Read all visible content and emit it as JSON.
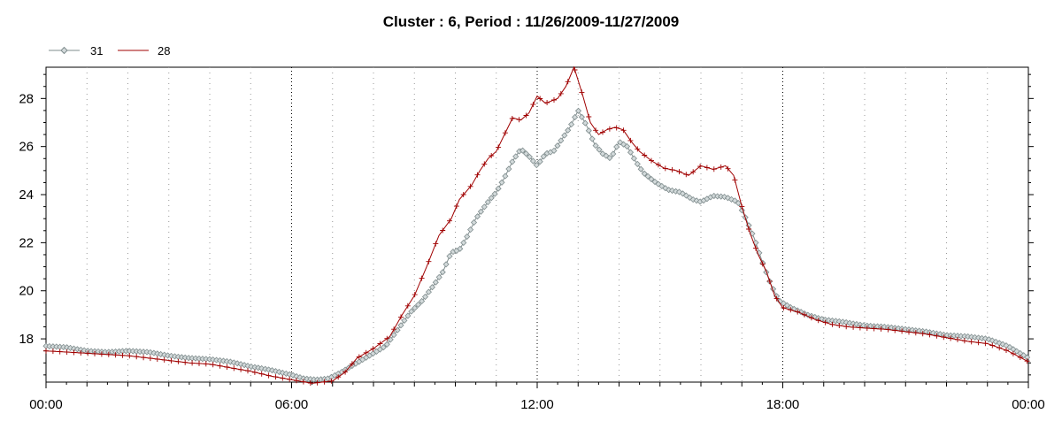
{
  "chart_data": {
    "type": "line",
    "title": "Cluster : 6, Period : 11/26/2009-11/27/2009",
    "xlabel": "",
    "ylabel": "",
    "xlim": [
      0,
      24
    ],
    "ylim": [
      16.2,
      29.3
    ],
    "x_ticks": [
      {
        "value": 0,
        "label": "00:00"
      },
      {
        "value": 6,
        "label": "06:00"
      },
      {
        "value": 12,
        "label": "12:00"
      },
      {
        "value": 18,
        "label": "18:00"
      },
      {
        "value": 24,
        "label": "00:00"
      }
    ],
    "y_ticks": [
      {
        "value": 18,
        "label": "18"
      },
      {
        "value": 20,
        "label": "20"
      },
      {
        "value": 22,
        "label": "22"
      },
      {
        "value": 24,
        "label": "24"
      },
      {
        "value": 26,
        "label": "26"
      },
      {
        "value": 28,
        "label": "28"
      }
    ],
    "grid": "vertical dotted",
    "legend_position": "top-left",
    "series": [
      {
        "name": "31",
        "color": "#7f8c8d",
        "marker": "diamond",
        "points": [
          [
            0,
            17.7
          ],
          [
            0.5,
            17.65
          ],
          [
            1,
            17.5
          ],
          [
            1.5,
            17.45
          ],
          [
            2,
            17.5
          ],
          [
            2.5,
            17.45
          ],
          [
            3,
            17.3
          ],
          [
            3.5,
            17.2
          ],
          [
            4,
            17.15
          ],
          [
            4.5,
            17.05
          ],
          [
            5,
            16.85
          ],
          [
            5.5,
            16.7
          ],
          [
            6,
            16.5
          ],
          [
            6.3,
            16.35
          ],
          [
            6.6,
            16.3
          ],
          [
            6.9,
            16.35
          ],
          [
            7.2,
            16.6
          ],
          [
            7.6,
            17.0
          ],
          [
            8.0,
            17.4
          ],
          [
            8.3,
            17.7
          ],
          [
            8.6,
            18.4
          ],
          [
            8.9,
            19.1
          ],
          [
            9.2,
            19.6
          ],
          [
            9.5,
            20.3
          ],
          [
            9.7,
            20.8
          ],
          [
            9.9,
            21.6
          ],
          [
            10.1,
            21.7
          ],
          [
            10.3,
            22.3
          ],
          [
            10.5,
            23.0
          ],
          [
            10.8,
            23.7
          ],
          [
            11.0,
            24.1
          ],
          [
            11.2,
            24.7
          ],
          [
            11.4,
            25.4
          ],
          [
            11.6,
            25.9
          ],
          [
            11.8,
            25.6
          ],
          [
            12.0,
            25.2
          ],
          [
            12.2,
            25.7
          ],
          [
            12.4,
            25.8
          ],
          [
            12.6,
            26.3
          ],
          [
            12.8,
            26.8
          ],
          [
            13.0,
            27.5
          ],
          [
            13.2,
            26.9
          ],
          [
            13.4,
            26.1
          ],
          [
            13.6,
            25.7
          ],
          [
            13.8,
            25.5
          ],
          [
            14.0,
            26.2
          ],
          [
            14.2,
            26.0
          ],
          [
            14.4,
            25.4
          ],
          [
            14.6,
            24.9
          ],
          [
            14.9,
            24.5
          ],
          [
            15.2,
            24.2
          ],
          [
            15.5,
            24.1
          ],
          [
            15.8,
            23.8
          ],
          [
            16.0,
            23.7
          ],
          [
            16.3,
            23.95
          ],
          [
            16.6,
            23.9
          ],
          [
            16.9,
            23.7
          ],
          [
            17.1,
            23.0
          ],
          [
            17.3,
            22.2
          ],
          [
            17.5,
            21.2
          ],
          [
            17.7,
            20.3
          ],
          [
            17.9,
            19.6
          ],
          [
            18.2,
            19.3
          ],
          [
            18.6,
            19.0
          ],
          [
            19.0,
            18.8
          ],
          [
            19.5,
            18.7
          ],
          [
            20,
            18.55
          ],
          [
            20.5,
            18.5
          ],
          [
            21,
            18.4
          ],
          [
            21.5,
            18.3
          ],
          [
            22,
            18.15
          ],
          [
            22.5,
            18.1
          ],
          [
            23,
            18.0
          ],
          [
            23.5,
            17.7
          ],
          [
            24,
            17.2
          ]
        ]
      },
      {
        "name": "28",
        "color": "#a00000",
        "marker": "plus",
        "points": [
          [
            0,
            17.5
          ],
          [
            0.5,
            17.45
          ],
          [
            1,
            17.4
          ],
          [
            1.5,
            17.35
          ],
          [
            2,
            17.3
          ],
          [
            2.5,
            17.2
          ],
          [
            3,
            17.1
          ],
          [
            3.5,
            17.0
          ],
          [
            4,
            16.95
          ],
          [
            4.5,
            16.8
          ],
          [
            5,
            16.65
          ],
          [
            5.5,
            16.45
          ],
          [
            6,
            16.3
          ],
          [
            6.5,
            16.15
          ],
          [
            7,
            16.25
          ],
          [
            7.3,
            16.6
          ],
          [
            7.6,
            17.2
          ],
          [
            8.0,
            17.6
          ],
          [
            8.4,
            18.1
          ],
          [
            8.7,
            19.0
          ],
          [
            9.0,
            19.8
          ],
          [
            9.3,
            21.0
          ],
          [
            9.6,
            22.3
          ],
          [
            9.9,
            23.0
          ],
          [
            10.1,
            23.8
          ],
          [
            10.4,
            24.4
          ],
          [
            10.6,
            25.0
          ],
          [
            10.8,
            25.5
          ],
          [
            11.0,
            25.8
          ],
          [
            11.2,
            26.5
          ],
          [
            11.4,
            27.2
          ],
          [
            11.6,
            27.1
          ],
          [
            11.8,
            27.4
          ],
          [
            12.0,
            28.1
          ],
          [
            12.2,
            27.8
          ],
          [
            12.5,
            28.0
          ],
          [
            12.7,
            28.5
          ],
          [
            12.9,
            29.3
          ],
          [
            13.1,
            28.2
          ],
          [
            13.3,
            27.0
          ],
          [
            13.5,
            26.5
          ],
          [
            13.7,
            26.7
          ],
          [
            13.9,
            26.8
          ],
          [
            14.1,
            26.7
          ],
          [
            14.3,
            26.2
          ],
          [
            14.5,
            25.8
          ],
          [
            14.8,
            25.4
          ],
          [
            15.1,
            25.1
          ],
          [
            15.4,
            25.0
          ],
          [
            15.7,
            24.8
          ],
          [
            16.0,
            25.2
          ],
          [
            16.3,
            25.05
          ],
          [
            16.6,
            25.2
          ],
          [
            16.8,
            24.8
          ],
          [
            17.0,
            23.5
          ],
          [
            17.2,
            22.4
          ],
          [
            17.4,
            21.5
          ],
          [
            17.6,
            20.8
          ],
          [
            17.8,
            19.8
          ],
          [
            18.0,
            19.3
          ],
          [
            18.4,
            19.1
          ],
          [
            18.8,
            18.8
          ],
          [
            19.2,
            18.6
          ],
          [
            19.6,
            18.5
          ],
          [
            20,
            18.45
          ],
          [
            20.5,
            18.4
          ],
          [
            21,
            18.3
          ],
          [
            21.5,
            18.2
          ],
          [
            22,
            18.05
          ],
          [
            22.5,
            17.9
          ],
          [
            23,
            17.8
          ],
          [
            23.5,
            17.5
          ],
          [
            24,
            17.05
          ]
        ]
      }
    ]
  }
}
